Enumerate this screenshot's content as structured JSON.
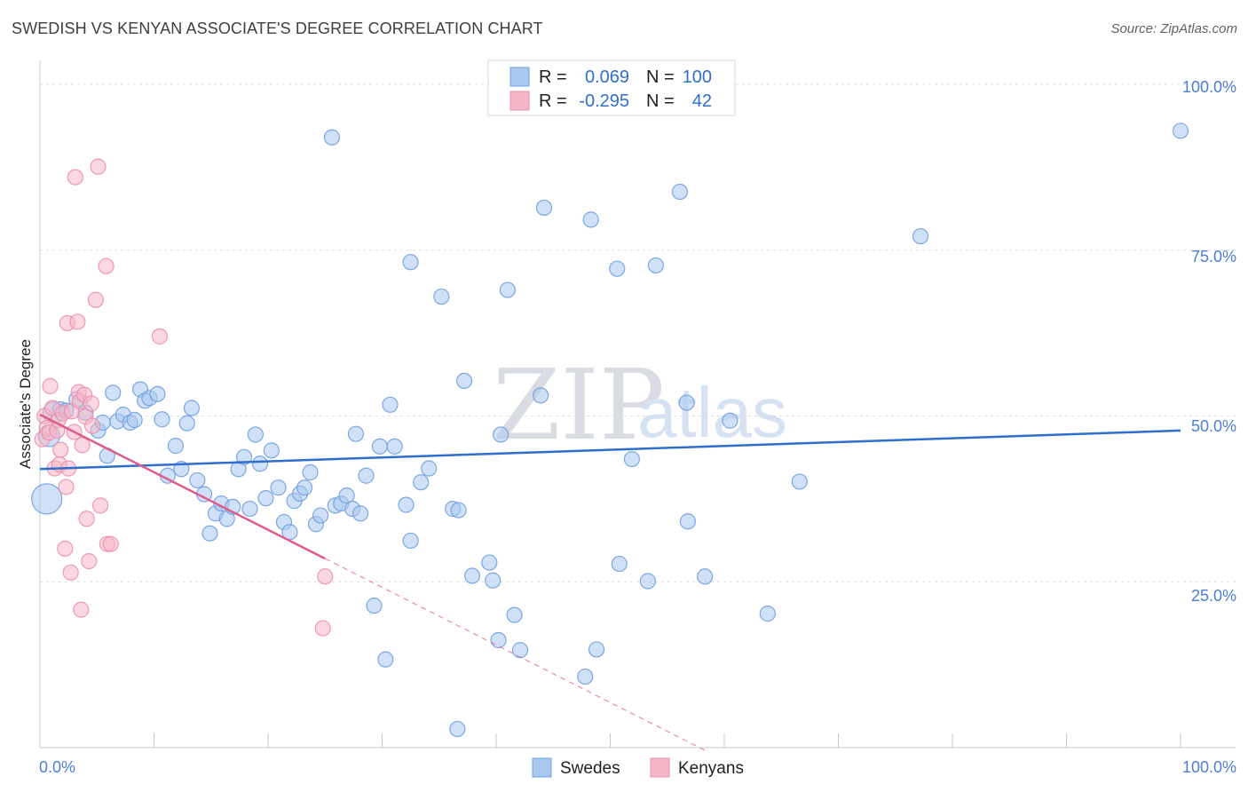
{
  "title": "SWEDISH VS KENYAN ASSOCIATE'S DEGREE CORRELATION CHART",
  "source": "Source: ZipAtlas.com",
  "colors": {
    "swedes_fill": "#a9c8f0",
    "swedes_stroke": "#6f9fe0",
    "swedes_line": "#2e6fce",
    "kenyans_fill": "#f6b6c8",
    "kenyans_stroke": "#ec8fab",
    "kenyans_line": "#e05a8a",
    "grid": "#dadce0",
    "axis_text": "#4a7fd4"
  },
  "legend": {
    "r_label": "R =",
    "n_label": "N =",
    "swedes": {
      "r": "0.069",
      "n": "100"
    },
    "kenyans": {
      "r": "-0.295",
      "n": "42"
    }
  },
  "watermark": {
    "zip": "ZIP",
    "atlas": "atlas"
  },
  "chart_data": {
    "type": "scatter",
    "title": "SWEDISH VS KENYAN ASSOCIATE'S DEGREE CORRELATION CHART",
    "xlabel": "",
    "ylabel": "Associate's Degree",
    "xlim": [
      0,
      100
    ],
    "ylim": [
      0,
      100
    ],
    "x_tick_labels": [
      "0.0%",
      "100.0%"
    ],
    "y_tick_labels": [
      "100.0%",
      "75.0%",
      "50.0%",
      "25.0%"
    ],
    "y_ticks": [
      100,
      75,
      50,
      25
    ],
    "legend_position": "top-center",
    "series": [
      {
        "name": "Swedes",
        "r": 0.069,
        "n": 100,
        "trend": {
          "x": [
            0,
            100
          ],
          "y": [
            42.0,
            47.8
          ],
          "style": "solid"
        },
        "points": [
          {
            "x": 0.6,
            "y": 37.5,
            "s": "xl"
          },
          {
            "x": 0.8,
            "y": 47,
            "s": "l"
          },
          {
            "x": 1.2,
            "y": 50.5,
            "s": "l"
          },
          {
            "x": 1.8,
            "y": 51
          },
          {
            "x": 2.3,
            "y": 50.8
          },
          {
            "x": 3.2,
            "y": 52.5
          },
          {
            "x": 4.0,
            "y": 50.5
          },
          {
            "x": 5.1,
            "y": 47.8
          },
          {
            "x": 5.5,
            "y": 49
          },
          {
            "x": 5.9,
            "y": 44
          },
          {
            "x": 6.4,
            "y": 53.5
          },
          {
            "x": 6.8,
            "y": 49.2
          },
          {
            "x": 7.3,
            "y": 50.2
          },
          {
            "x": 7.9,
            "y": 49
          },
          {
            "x": 8.3,
            "y": 49.4
          },
          {
            "x": 8.8,
            "y": 54
          },
          {
            "x": 9.2,
            "y": 52.3
          },
          {
            "x": 9.6,
            "y": 52.7
          },
          {
            "x": 10.3,
            "y": 53.3
          },
          {
            "x": 10.7,
            "y": 49.5
          },
          {
            "x": 11.2,
            "y": 41
          },
          {
            "x": 11.9,
            "y": 45.5
          },
          {
            "x": 12.4,
            "y": 42
          },
          {
            "x": 12.9,
            "y": 48.9
          },
          {
            "x": 13.3,
            "y": 51.2
          },
          {
            "x": 13.8,
            "y": 40.3
          },
          {
            "x": 14.4,
            "y": 38.2
          },
          {
            "x": 14.9,
            "y": 32.3
          },
          {
            "x": 15.4,
            "y": 35.3
          },
          {
            "x": 15.9,
            "y": 36.8
          },
          {
            "x": 16.4,
            "y": 34.5
          },
          {
            "x": 16.9,
            "y": 36.3
          },
          {
            "x": 17.4,
            "y": 42
          },
          {
            "x": 17.9,
            "y": 43.8
          },
          {
            "x": 18.4,
            "y": 36
          },
          {
            "x": 18.9,
            "y": 47.2
          },
          {
            "x": 19.3,
            "y": 42.8
          },
          {
            "x": 19.8,
            "y": 37.6
          },
          {
            "x": 20.3,
            "y": 44.8
          },
          {
            "x": 20.9,
            "y": 39.2
          },
          {
            "x": 21.4,
            "y": 34
          },
          {
            "x": 21.9,
            "y": 32.5
          },
          {
            "x": 22.3,
            "y": 37.2
          },
          {
            "x": 22.8,
            "y": 38.3
          },
          {
            "x": 23.2,
            "y": 39.2
          },
          {
            "x": 23.7,
            "y": 41.5
          },
          {
            "x": 24.2,
            "y": 33.7
          },
          {
            "x": 24.6,
            "y": 35
          },
          {
            "x": 25.6,
            "y": 92
          },
          {
            "x": 25.9,
            "y": 36.5
          },
          {
            "x": 26.4,
            "y": 36.8
          },
          {
            "x": 26.9,
            "y": 38
          },
          {
            "x": 27.4,
            "y": 36
          },
          {
            "x": 27.7,
            "y": 47.3
          },
          {
            "x": 28.1,
            "y": 35.3
          },
          {
            "x": 28.6,
            "y": 41
          },
          {
            "x": 29.3,
            "y": 21.4
          },
          {
            "x": 29.8,
            "y": 45.4
          },
          {
            "x": 30.3,
            "y": 13.3
          },
          {
            "x": 30.7,
            "y": 51.7
          },
          {
            "x": 31.1,
            "y": 45.4
          },
          {
            "x": 32.1,
            "y": 36.6
          },
          {
            "x": 32.5,
            "y": 31.2
          },
          {
            "x": 32.5,
            "y": 73.2
          },
          {
            "x": 33.4,
            "y": 40
          },
          {
            "x": 34.1,
            "y": 42.1
          },
          {
            "x": 35.2,
            "y": 68
          },
          {
            "x": 36.2,
            "y": 36
          },
          {
            "x": 36.6,
            "y": 2.8
          },
          {
            "x": 36.7,
            "y": 35.8
          },
          {
            "x": 37.2,
            "y": 55.3
          },
          {
            "x": 37.9,
            "y": 25.9
          },
          {
            "x": 39.4,
            "y": 27.9
          },
          {
            "x": 39.7,
            "y": 25.2
          },
          {
            "x": 40.2,
            "y": 16.2
          },
          {
            "x": 40.4,
            "y": 47.2
          },
          {
            "x": 41.0,
            "y": 69
          },
          {
            "x": 41.6,
            "y": 20
          },
          {
            "x": 42.1,
            "y": 14.7
          },
          {
            "x": 43.9,
            "y": 53.1
          },
          {
            "x": 44.2,
            "y": 81.4
          },
          {
            "x": 47.8,
            "y": 10.7
          },
          {
            "x": 48.3,
            "y": 79.6
          },
          {
            "x": 48.8,
            "y": 14.8
          },
          {
            "x": 50.6,
            "y": 72.2
          },
          {
            "x": 50.8,
            "y": 27.7
          },
          {
            "x": 51.9,
            "y": 43.5
          },
          {
            "x": 53.3,
            "y": 25.1
          },
          {
            "x": 54.0,
            "y": 72.7
          },
          {
            "x": 56.1,
            "y": 83.8
          },
          {
            "x": 56.7,
            "y": 52
          },
          {
            "x": 56.8,
            "y": 34.1
          },
          {
            "x": 58.3,
            "y": 25.8
          },
          {
            "x": 60.5,
            "y": 49.3
          },
          {
            "x": 63.8,
            "y": 20.2
          },
          {
            "x": 66.6,
            "y": 40.1
          },
          {
            "x": 77.2,
            "y": 77.1
          },
          {
            "x": 100.0,
            "y": 93
          }
        ]
      },
      {
        "name": "Kenyans",
        "r": -0.295,
        "n": 42,
        "trend": {
          "x": [
            0,
            25
          ],
          "y": [
            50.2,
            28.5
          ],
          "style": "solid",
          "extended_to_x": 58.5,
          "extended_style": "dashed"
        },
        "points": [
          {
            "x": 0.2,
            "y": 46.5
          },
          {
            "x": 0.4,
            "y": 50
          },
          {
            "x": 0.6,
            "y": 48.2
          },
          {
            "x": 0.8,
            "y": 47.5
          },
          {
            "x": 0.9,
            "y": 54.5
          },
          {
            "x": 1.1,
            "y": 51.2
          },
          {
            "x": 1.3,
            "y": 42.1
          },
          {
            "x": 1.5,
            "y": 47.8
          },
          {
            "x": 1.6,
            "y": 49.4
          },
          {
            "x": 1.7,
            "y": 42.7
          },
          {
            "x": 1.8,
            "y": 44.9
          },
          {
            "x": 2.0,
            "y": 50.4
          },
          {
            "x": 2.2,
            "y": 30
          },
          {
            "x": 2.3,
            "y": 39.3
          },
          {
            "x": 2.4,
            "y": 64
          },
          {
            "x": 2.5,
            "y": 42.1
          },
          {
            "x": 2.7,
            "y": 26.4
          },
          {
            "x": 2.8,
            "y": 50.7
          },
          {
            "x": 3.0,
            "y": 47.6
          },
          {
            "x": 3.1,
            "y": 86
          },
          {
            "x": 3.3,
            "y": 64.2
          },
          {
            "x": 3.4,
            "y": 53.6
          },
          {
            "x": 3.5,
            "y": 52.2
          },
          {
            "x": 3.6,
            "y": 20.8
          },
          {
            "x": 3.7,
            "y": 45.6
          },
          {
            "x": 3.9,
            "y": 53.2
          },
          {
            "x": 4.0,
            "y": 49.9
          },
          {
            "x": 4.1,
            "y": 34.5
          },
          {
            "x": 4.3,
            "y": 28.1
          },
          {
            "x": 4.5,
            "y": 51.9
          },
          {
            "x": 4.6,
            "y": 48.5
          },
          {
            "x": 4.9,
            "y": 67.5
          },
          {
            "x": 5.1,
            "y": 87.6
          },
          {
            "x": 5.3,
            "y": 36.5
          },
          {
            "x": 5.8,
            "y": 72.6
          },
          {
            "x": 5.9,
            "y": 30.7
          },
          {
            "x": 6.2,
            "y": 30.7
          },
          {
            "x": 10.5,
            "y": 62
          },
          {
            "x": 25.0,
            "y": 25.8
          },
          {
            "x": 24.8,
            "y": 18
          }
        ]
      }
    ]
  }
}
